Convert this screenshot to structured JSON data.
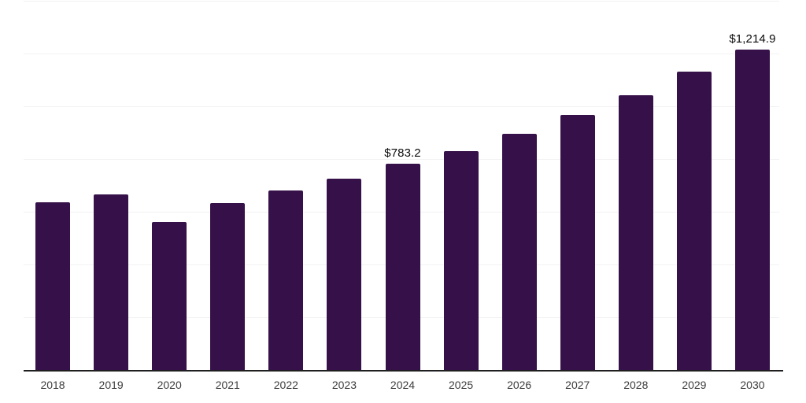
{
  "chart_data": {
    "type": "bar",
    "title": "",
    "xlabel": "",
    "ylabel": "",
    "categories": [
      "2018",
      "2019",
      "2020",
      "2021",
      "2022",
      "2023",
      "2024",
      "2025",
      "2026",
      "2027",
      "2028",
      "2029",
      "2030"
    ],
    "values": [
      636,
      667,
      560,
      633,
      681,
      726,
      783.2,
      831,
      897,
      966,
      1041,
      1131,
      1214.9
    ],
    "data_labels": {
      "2024": "$783.2",
      "2030": "$1,214.9"
    },
    "ylim": [
      0,
      1400
    ],
    "grid_interval": 200,
    "grid_on": true,
    "legend_position": "none",
    "colors": {
      "bar": "#361149",
      "gridline": "#f2f2f2",
      "axis_line": "#1f1f1f",
      "tick_label": "#3d3d3d",
      "data_label": "#0a0a0a",
      "background": "#ffffff"
    }
  }
}
